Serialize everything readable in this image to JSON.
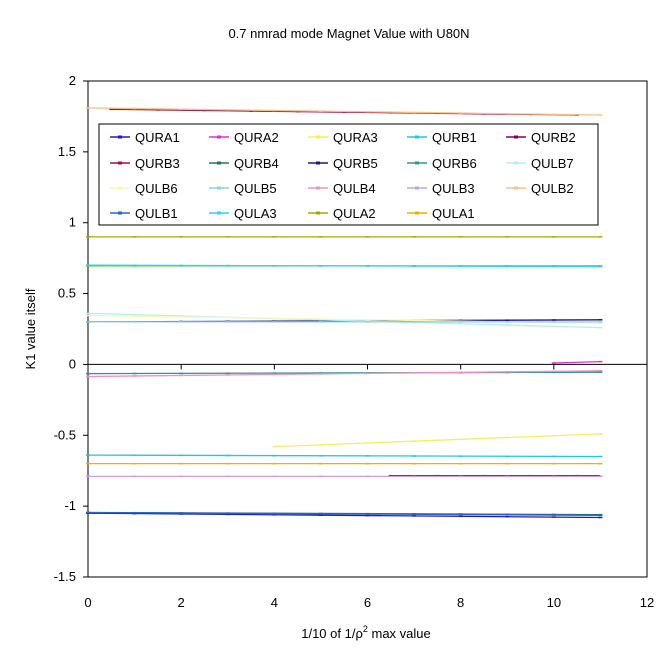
{
  "chart_data": {
    "type": "line",
    "title": "0.7 nmrad mode Magnet Value with U80N",
    "xlabel_prefix": "1/10 of 1/",
    "xlabel_rho": "ρ",
    "xlabel_sup": "2",
    "xlabel_suffix": " max value",
    "ylabel": "K1 value itself",
    "xlim": [
      0,
      12
    ],
    "ylim": [
      -1.5,
      2
    ],
    "x_ticks": [
      "0",
      "2",
      "4",
      "6",
      "8",
      "10",
      "12"
    ],
    "y_ticks": [
      "2",
      "1.5",
      "1",
      "0.5",
      "0",
      "-0.5",
      "-1",
      "-1.5"
    ],
    "grid": false,
    "legend_position": "top",
    "series": [
      {
        "name": "QURA1",
        "color": "#1f1fb4",
        "points": [
          [
            0,
            -1.05
          ],
          [
            11,
            -1.08
          ]
        ]
      },
      {
        "name": "QURA2",
        "color": "#e030c8",
        "points": [
          [
            10,
            0.01
          ],
          [
            11,
            0.02
          ]
        ]
      },
      {
        "name": "QURA3",
        "color": "#f2f060",
        "points": [
          [
            4,
            -0.58
          ],
          [
            11,
            -0.49
          ]
        ]
      },
      {
        "name": "QURB1",
        "color": "#20c8e0",
        "points": [
          [
            0,
            -0.64
          ],
          [
            11,
            -0.65
          ]
        ]
      },
      {
        "name": "QURB2",
        "color": "#800060",
        "points": [
          [
            6.5,
            -0.785
          ],
          [
            11,
            -0.785
          ]
        ]
      },
      {
        "name": "QURB3",
        "color": "#a01040",
        "points": [
          [
            0.5,
            1.8
          ],
          [
            10.5,
            1.76
          ]
        ]
      },
      {
        "name": "QURB4",
        "color": "#207070",
        "points": [
          [
            0,
            -1.045
          ],
          [
            11,
            -1.06
          ]
        ]
      },
      {
        "name": "QURB5",
        "color": "#1a1a80",
        "points": [
          [
            0,
            0.3
          ],
          [
            11,
            0.315
          ]
        ]
      },
      {
        "name": "QURB6",
        "color": "#3090a0",
        "points": [
          [
            0,
            -0.065
          ],
          [
            11,
            -0.055
          ]
        ]
      },
      {
        "name": "QULB7",
        "color": "#b0f0f0",
        "points": [
          [
            0,
            0.36
          ],
          [
            11,
            0.26
          ]
        ]
      },
      {
        "name": "QULB6",
        "color": "#f8f8b0",
        "points": [
          [
            0,
            0.345
          ],
          [
            11,
            0.29
          ]
        ]
      },
      {
        "name": "QULB5",
        "color": "#90d0f0",
        "points": [
          [
            0,
            0.3
          ],
          [
            11,
            0.3
          ]
        ]
      },
      {
        "name": "QULB4",
        "color": "#f090c0",
        "points": [
          [
            0,
            -0.085
          ],
          [
            11,
            -0.045
          ]
        ]
      },
      {
        "name": "QULB3",
        "color": "#c8a0e8",
        "points": [
          [
            0,
            -0.79
          ],
          [
            11,
            -0.79
          ]
        ]
      },
      {
        "name": "QULB2",
        "color": "#f8c088",
        "points": [
          [
            0,
            1.81
          ],
          [
            11,
            1.76
          ]
        ]
      },
      {
        "name": "QULB1",
        "color": "#3060d0",
        "points": [
          [
            0,
            -1.045
          ],
          [
            11,
            -1.065
          ]
        ]
      },
      {
        "name": "QULA3",
        "color": "#30d0f0",
        "points": [
          [
            0,
            0.7
          ],
          [
            11,
            0.69
          ]
        ]
      },
      {
        "name": "QULA2",
        "color": "#a8a800",
        "points": [
          [
            0,
            0.9
          ],
          [
            11,
            0.9
          ]
        ]
      },
      {
        "name": "QULA1",
        "color": "#f0b000",
        "points": [
          [
            0,
            -0.7
          ],
          [
            11,
            -0.7
          ]
        ]
      }
    ],
    "extra_lines": [
      {
        "color": "#40d040",
        "points": [
          [
            0,
            0.695
          ],
          [
            11,
            0.695
          ]
        ]
      }
    ]
  }
}
